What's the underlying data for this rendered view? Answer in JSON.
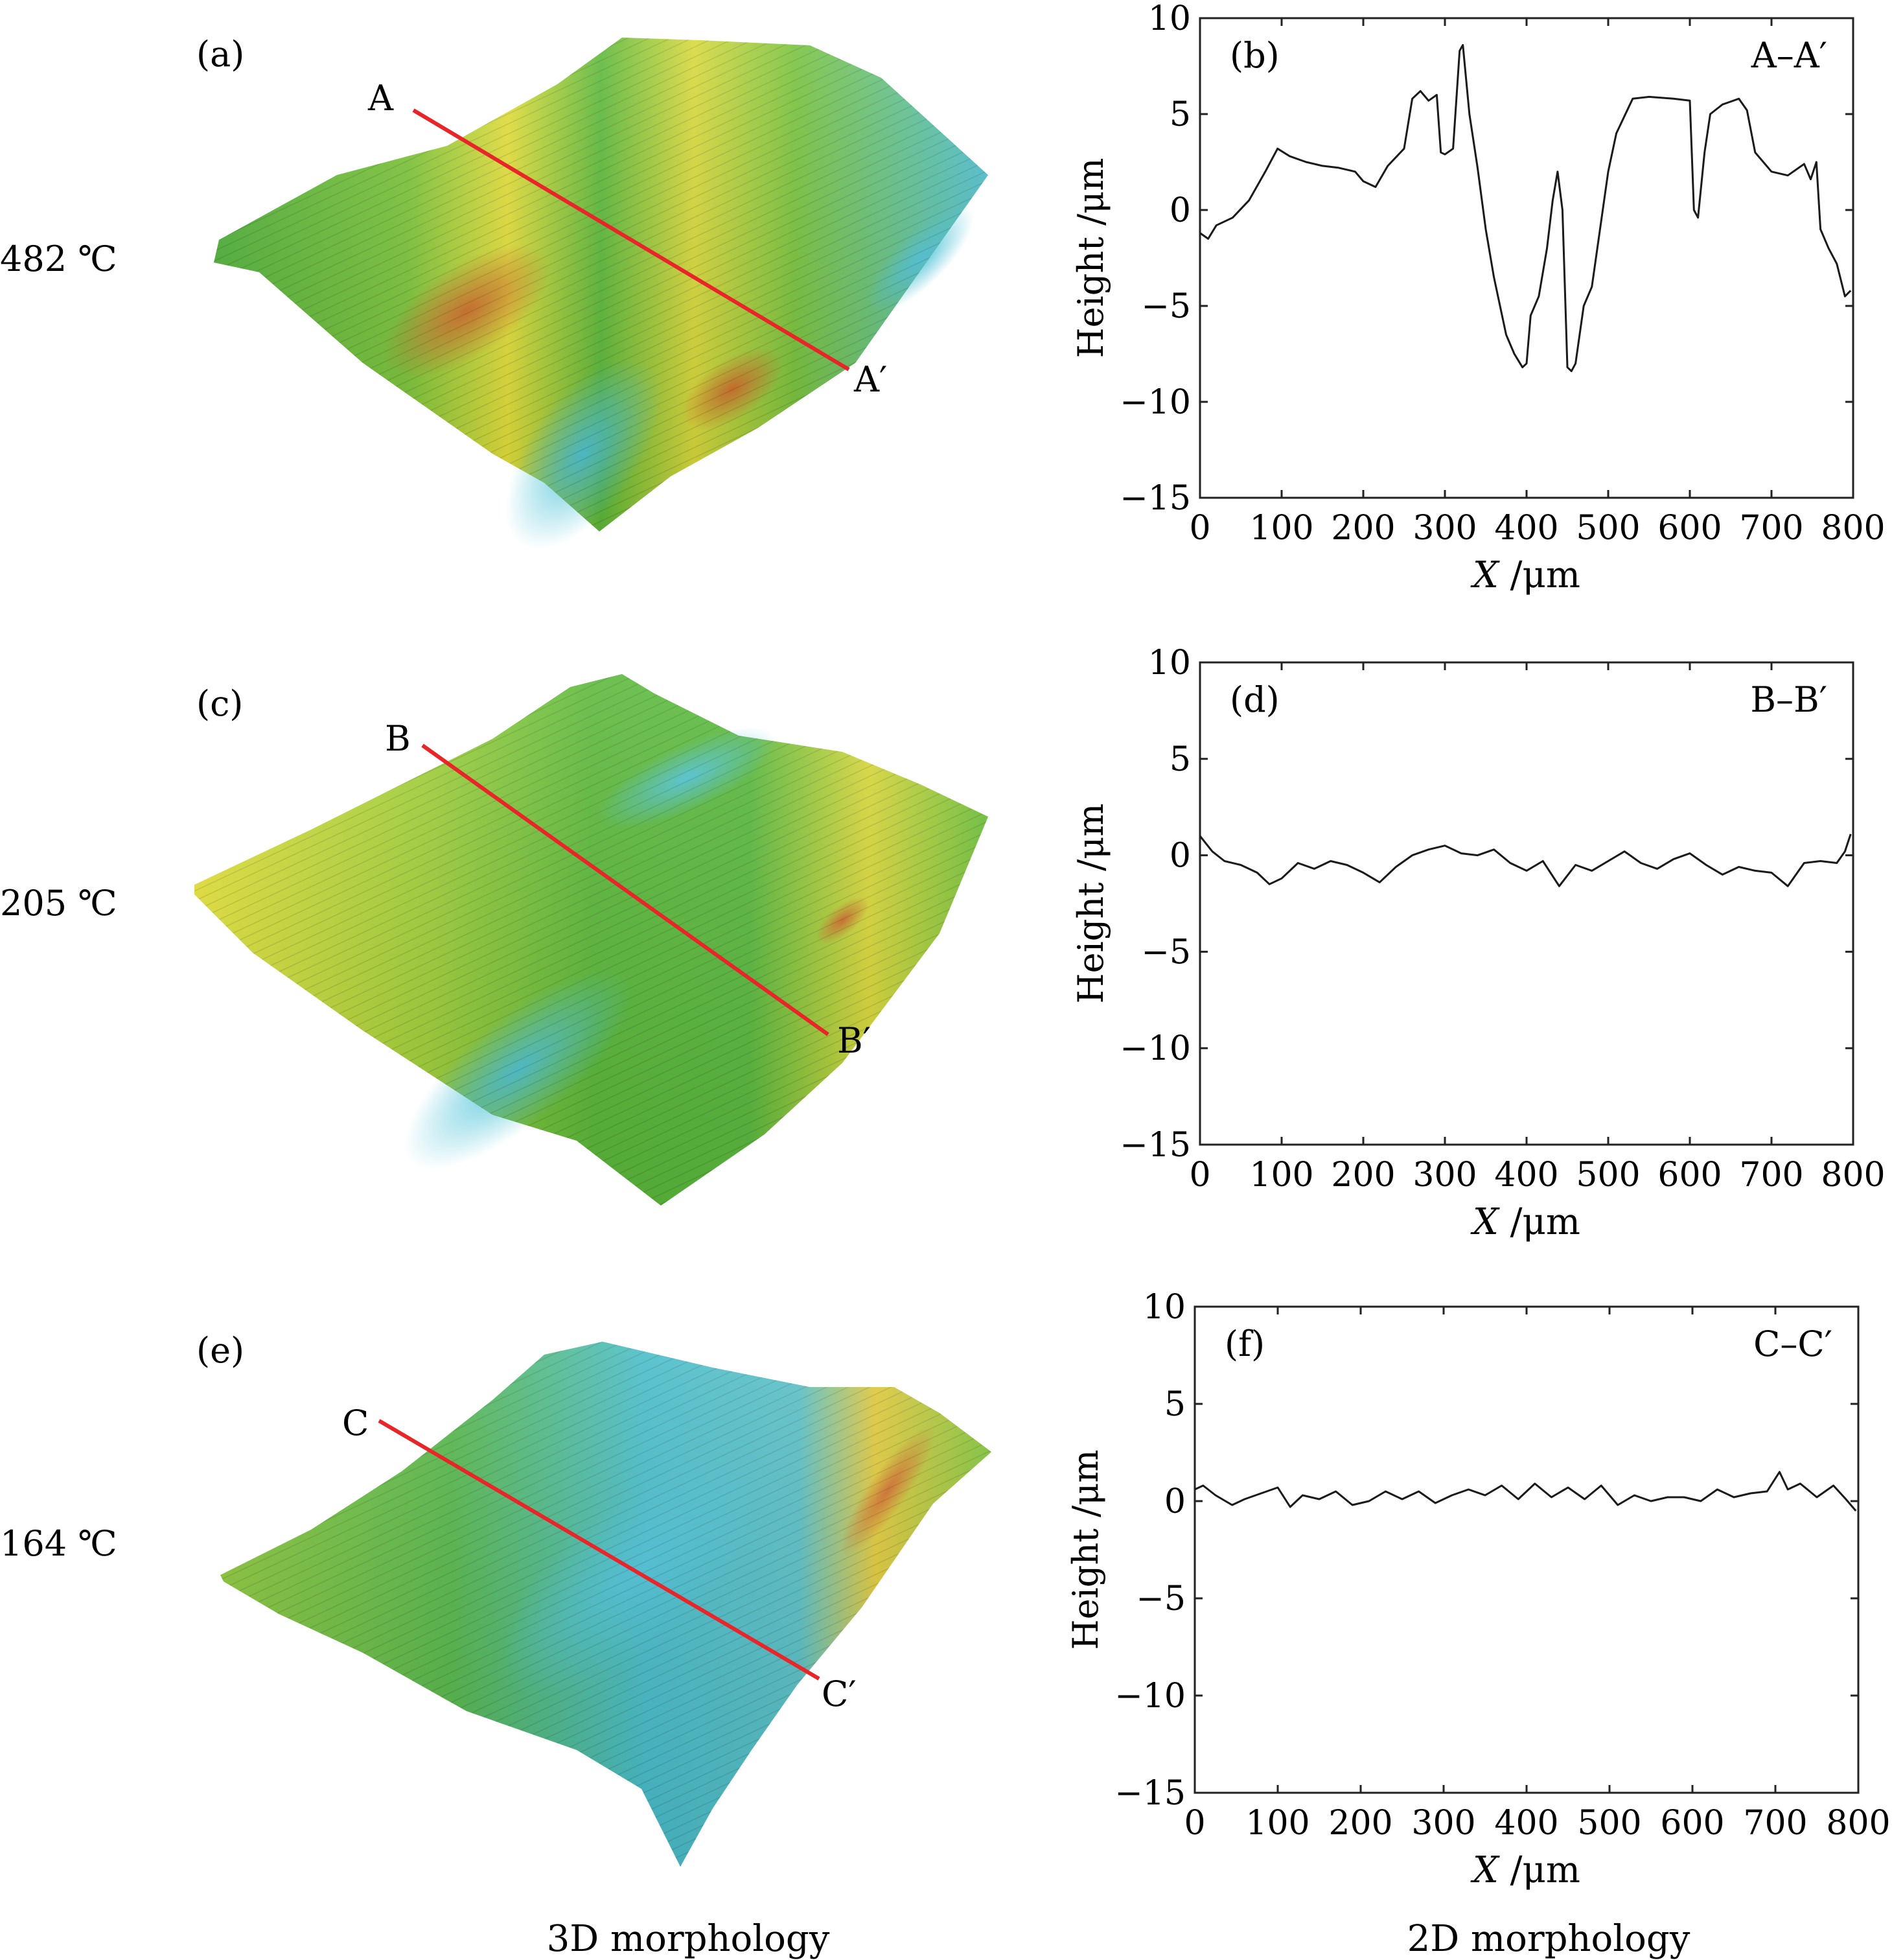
{
  "colors": {
    "section_line": "#e8262a",
    "profile_line": "#1a1a1a",
    "surface_green": "#5bb83a",
    "surface_yellow": "#e3e03a",
    "surface_orange": "#d9772a",
    "surface_cyan": "#4cc2d6"
  },
  "rows": [
    {
      "temp": "482 ℃",
      "panel3d": {
        "tag": "(a)",
        "start": "A",
        "end": "A′"
      },
      "panel2d": {
        "tag": "(b)",
        "section": "A–A′"
      }
    },
    {
      "temp": "205 ℃",
      "panel3d": {
        "tag": "(c)",
        "start": "B",
        "end": "B′"
      },
      "panel2d": {
        "tag": "(d)",
        "section": "B–B′"
      }
    },
    {
      "temp": "164 ℃",
      "panel3d": {
        "tag": "(e)",
        "start": "C",
        "end": "C′"
      },
      "panel2d": {
        "tag": "(f)",
        "section": "C–C′"
      }
    }
  ],
  "captions": {
    "left": "3D morphology",
    "right": "2D morphology"
  },
  "axes": {
    "ylabel": "Height /μm",
    "xlabel_var": "X",
    "xlabel_unit": " /μm",
    "xlim": [
      0,
      800
    ],
    "ylim": [
      -15,
      10
    ],
    "xticks": [
      0,
      100,
      200,
      300,
      400,
      500,
      600,
      700,
      800
    ],
    "yticks": [
      10,
      5,
      0,
      -5,
      -10,
      -15
    ],
    "ytick_labels": [
      "10",
      "5",
      "0",
      "−5",
      "−10",
      "−15"
    ]
  },
  "chart_data": [
    {
      "type": "line",
      "panel": "(b)",
      "series": [
        {
          "name": "A–A′",
          "x": [
            0,
            10,
            20,
            40,
            60,
            80,
            95,
            110,
            130,
            150,
            170,
            190,
            200,
            215,
            230,
            250,
            260,
            270,
            280,
            290,
            295,
            300,
            310,
            318,
            322,
            330,
            340,
            350,
            360,
            370,
            375,
            385,
            395,
            400,
            405,
            415,
            425,
            432,
            438,
            444,
            450,
            455,
            460,
            470,
            480,
            490,
            500,
            510,
            530,
            550,
            580,
            600,
            605,
            610,
            618,
            625,
            640,
            660,
            670,
            680,
            700,
            720,
            740,
            748,
            755,
            760,
            770,
            780,
            790,
            797
          ],
          "y": [
            -1.2,
            -1.5,
            -0.8,
            -0.4,
            0.5,
            2.0,
            3.2,
            2.8,
            2.5,
            2.3,
            2.2,
            2.0,
            1.5,
            1.2,
            2.3,
            3.2,
            5.8,
            6.2,
            5.7,
            6.0,
            3.0,
            2.9,
            3.2,
            8.3,
            8.6,
            5.0,
            2.2,
            -1.0,
            -3.5,
            -5.5,
            -6.5,
            -7.5,
            -8.2,
            -8.0,
            -5.5,
            -4.5,
            -2.0,
            0.5,
            2.0,
            0.0,
            -8.2,
            -8.4,
            -8.0,
            -5.0,
            -4.0,
            -1.0,
            2.0,
            4.0,
            5.8,
            5.9,
            5.8,
            5.7,
            0.0,
            -0.4,
            3.0,
            5.0,
            5.5,
            5.8,
            5.2,
            3.0,
            2.0,
            1.8,
            2.4,
            1.6,
            2.5,
            -1.0,
            -2.0,
            -2.8,
            -4.5,
            -4.2
          ]
        }
      ]
    },
    {
      "type": "line",
      "panel": "(d)",
      "series": [
        {
          "name": "B–B′",
          "x": [
            0,
            15,
            30,
            50,
            70,
            85,
            100,
            120,
            140,
            160,
            180,
            200,
            220,
            240,
            260,
            280,
            300,
            320,
            340,
            360,
            380,
            400,
            420,
            440,
            460,
            480,
            500,
            520,
            540,
            560,
            580,
            600,
            620,
            640,
            660,
            680,
            700,
            720,
            740,
            760,
            780,
            790,
            797
          ],
          "y": [
            1.0,
            0.2,
            -0.3,
            -0.5,
            -0.9,
            -1.5,
            -1.2,
            -0.4,
            -0.7,
            -0.3,
            -0.5,
            -0.9,
            -1.4,
            -0.6,
            0.0,
            0.3,
            0.5,
            0.1,
            0.0,
            0.3,
            -0.4,
            -0.8,
            -0.3,
            -1.6,
            -0.5,
            -0.8,
            -0.3,
            0.2,
            -0.4,
            -0.7,
            -0.2,
            0.1,
            -0.5,
            -1.0,
            -0.6,
            -0.8,
            -0.9,
            -1.6,
            -0.4,
            -0.3,
            -0.4,
            0.2,
            1.1
          ]
        }
      ]
    },
    {
      "type": "line",
      "panel": "(f)",
      "series": [
        {
          "name": "C–C′",
          "x": [
            0,
            10,
            25,
            45,
            60,
            80,
            100,
            115,
            130,
            150,
            170,
            190,
            210,
            230,
            250,
            270,
            290,
            310,
            330,
            350,
            370,
            390,
            410,
            430,
            450,
            470,
            490,
            510,
            530,
            550,
            570,
            590,
            610,
            630,
            650,
            670,
            690,
            705,
            715,
            730,
            750,
            770,
            785,
            797
          ],
          "y": [
            0.6,
            0.8,
            0.3,
            -0.2,
            0.1,
            0.4,
            0.7,
            -0.3,
            0.3,
            0.1,
            0.5,
            -0.2,
            0.0,
            0.5,
            0.1,
            0.5,
            -0.1,
            0.3,
            0.6,
            0.3,
            0.8,
            0.1,
            0.9,
            0.2,
            0.7,
            0.1,
            0.8,
            -0.2,
            0.3,
            0.0,
            0.2,
            0.2,
            0.0,
            0.6,
            0.2,
            0.4,
            0.5,
            1.5,
            0.6,
            0.9,
            0.2,
            0.8,
            0.1,
            -0.5
          ]
        }
      ]
    }
  ]
}
